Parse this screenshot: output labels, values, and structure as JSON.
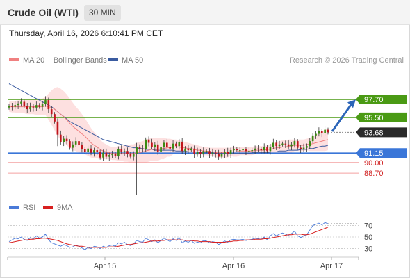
{
  "header": {
    "title": "Crude Oil (WTI)",
    "timeframe": "30 MIN",
    "datetime": "Thursday, April 16, 2026 6:10:41 PM CET"
  },
  "legend": {
    "ma20_label": "MA 20 + Bollinger Bands",
    "ma50_label": "MA 50",
    "copyright": "Research © 2026 Trading Central",
    "rsi_label": "RSI",
    "rsi_ma_label": "9MA"
  },
  "colors": {
    "ma20": "#f08080",
    "ma50": "#3a5ba0",
    "bollinger_fill": "#fde0e0",
    "resistance": "#4a9a14",
    "pivot": "#3a76d8",
    "support": "#f4a0a0",
    "candle_up": "#3a8a12",
    "candle_down": "#c0141c",
    "current_price_bg": "#2a2a2a",
    "rsi": "#4a7ad8",
    "rsi_ma": "#d82020"
  },
  "chart_data": [
    {
      "type": "candlestick",
      "ylim": [
        86.0,
        101.0
      ],
      "x_tick_labels": [
        "Apr 15",
        "Apr 16",
        "Apr 17"
      ],
      "levels": [
        {
          "value": 97.7,
          "label": "97.70",
          "kind": "resistance"
        },
        {
          "value": 95.5,
          "label": "95.50",
          "kind": "resistance"
        },
        {
          "value": 93.68,
          "label": "93.68",
          "kind": "current"
        },
        {
          "value": 91.15,
          "label": "91.15",
          "kind": "pivot"
        },
        {
          "value": 90.0,
          "label": "90.00",
          "kind": "support"
        },
        {
          "value": 88.7,
          "label": "88.70",
          "kind": "support"
        }
      ],
      "target_arrow": {
        "from": 93.8,
        "to": 97.5
      },
      "close": [
        96.9,
        96.8,
        97.0,
        97.2,
        97.4,
        96.9,
        96.5,
        96.8,
        96.7,
        97.0,
        96.8,
        97.1,
        97.6,
        96.5,
        95.9,
        95.0,
        93.4,
        92.5,
        92.9,
        92.6,
        91.8,
        92.2,
        92.6,
        92.1,
        91.6,
        91.3,
        91.7,
        91.2,
        91.5,
        91.3,
        90.6,
        91.2,
        90.7,
        90.9,
        91.0,
        90.8,
        91.6,
        91.3,
        91.4,
        91.0,
        90.7,
        91.0,
        91.9,
        91.7,
        91.6,
        92.8,
        92.4,
        91.9,
        92.2,
        91.3,
        91.9,
        92.4,
        91.9,
        91.7,
        92.3,
        92.0,
        92.5,
        91.4,
        91.7,
        91.5,
        91.7,
        91.0,
        91.3,
        91.0,
        91.4,
        91.4,
        91.0,
        91.2,
        91.1,
        90.7,
        91.0,
        91.3,
        91.0,
        91.5,
        91.6,
        91.5,
        91.5,
        91.6,
        91.4,
        91.4,
        91.5,
        91.7,
        91.6,
        91.5,
        91.9,
        91.4,
        91.9,
        92.4,
        92.0,
        92.2,
        92.3,
        92.2,
        92.0,
        92.2,
        92.6,
        91.8,
        91.6,
        91.8,
        92.0,
        92.6,
        93.3,
        93.5,
        93.8,
        93.6,
        94.0,
        93.68
      ],
      "ma20": [
        96.8,
        96.8,
        96.8,
        96.8,
        96.8,
        96.8,
        96.8,
        96.8,
        96.8,
        96.8,
        96.8,
        96.8,
        96.9,
        96.8,
        96.7,
        96.5,
        96.2,
        95.9,
        95.6,
        95.2,
        94.8,
        94.4,
        94.1,
        93.8,
        93.5,
        93.2,
        92.8,
        92.4,
        92.1,
        91.9,
        91.6,
        91.4,
        91.3,
        91.2,
        91.1,
        91.1,
        91.1,
        91.1,
        91.1,
        91.1,
        91.1,
        91.1,
        91.2,
        91.2,
        91.3,
        91.4,
        91.5,
        91.6,
        91.6,
        91.6,
        91.7,
        91.7,
        91.8,
        91.8,
        91.9,
        91.9,
        91.9,
        91.8,
        91.8,
        91.7,
        91.7,
        91.6,
        91.5,
        91.5,
        91.4,
        91.4,
        91.3,
        91.3,
        91.2,
        91.2,
        91.2,
        91.2,
        91.2,
        91.3,
        91.3,
        91.3,
        91.4,
        91.4,
        91.4,
        91.4,
        91.4,
        91.5,
        91.5,
        91.5,
        91.5,
        91.6,
        91.6,
        91.7,
        91.8,
        91.8,
        91.9,
        91.9,
        92.0,
        92.0,
        92.1,
        92.1,
        92.1,
        92.1,
        92.2,
        92.2,
        92.3,
        92.4,
        92.5,
        92.6,
        92.7,
        92.8
      ],
      "bb_upper": [
        97.4,
        97.5,
        97.5,
        97.6,
        97.6,
        97.6,
        97.7,
        97.7,
        97.7,
        97.8,
        97.8,
        97.8,
        98.0,
        98.4,
        98.8,
        99.1,
        99.2,
        99.0,
        98.7,
        98.3,
        97.8,
        97.3,
        96.8,
        96.4,
        95.9,
        95.4,
        94.8,
        94.2,
        93.7,
        93.3,
        92.8,
        92.4,
        92.2,
        92.0,
        91.9,
        91.9,
        92.0,
        92.0,
        92.1,
        92.1,
        92.2,
        92.2,
        92.4,
        92.5,
        92.6,
        92.8,
        92.9,
        93.0,
        93.0,
        93.0,
        93.0,
        93.0,
        92.9,
        92.9,
        92.8,
        92.8,
        92.7,
        92.6,
        92.5,
        92.4,
        92.3,
        92.2,
        92.1,
        92.0,
        91.9,
        91.9,
        91.8,
        91.8,
        91.8,
        91.8,
        91.8,
        91.8,
        91.8,
        91.8,
        91.9,
        91.9,
        91.9,
        91.9,
        91.9,
        91.9,
        91.9,
        92.0,
        92.0,
        92.0,
        92.0,
        92.1,
        92.2,
        92.3,
        92.5,
        92.6,
        92.7,
        92.7,
        92.8,
        92.8,
        92.8,
        92.8,
        92.8,
        92.8,
        92.9,
        93.0,
        93.2,
        93.4,
        93.6,
        93.8,
        94.0,
        94.1
      ],
      "bb_lower": [
        96.2,
        96.1,
        96.1,
        96.0,
        96.0,
        96.0,
        95.9,
        95.9,
        95.9,
        95.8,
        95.8,
        95.8,
        95.8,
        95.2,
        94.6,
        93.9,
        93.2,
        92.8,
        92.5,
        92.1,
        91.8,
        91.5,
        91.4,
        91.2,
        91.1,
        91.0,
        90.8,
        90.6,
        90.5,
        90.5,
        90.4,
        90.4,
        90.4,
        90.4,
        90.3,
        90.3,
        90.2,
        90.2,
        90.1,
        90.1,
        90.0,
        90.0,
        90.0,
        90.0,
        90.0,
        90.0,
        90.1,
        90.2,
        90.2,
        90.2,
        90.4,
        90.4,
        90.7,
        90.7,
        91.0,
        91.0,
        91.1,
        91.0,
        91.1,
        91.0,
        91.1,
        91.0,
        90.9,
        91.0,
        90.9,
        90.9,
        90.8,
        90.8,
        90.6,
        90.6,
        90.6,
        90.6,
        90.6,
        90.8,
        90.7,
        90.7,
        90.9,
        90.9,
        90.9,
        90.9,
        90.9,
        91.0,
        91.0,
        91.0,
        91.0,
        91.1,
        91.0,
        91.1,
        91.1,
        91.0,
        91.1,
        91.1,
        91.2,
        91.2,
        91.4,
        91.4,
        91.4,
        91.4,
        91.5,
        91.4,
        91.4,
        91.4,
        91.4,
        91.4,
        91.4,
        91.5
      ],
      "ma50": [
        99.6,
        99.4,
        99.2,
        99.0,
        98.8,
        98.6,
        98.4,
        98.2,
        98.0,
        97.8,
        97.6,
        97.4,
        97.2,
        97.0,
        96.8,
        96.5,
        96.2,
        95.9,
        95.6,
        95.3,
        95.0,
        94.8,
        94.6,
        94.4,
        94.2,
        94.0,
        93.8,
        93.6,
        93.4,
        93.2,
        93.0,
        92.8,
        92.7,
        92.6,
        92.5,
        92.4,
        92.3,
        92.2,
        92.1,
        92.0,
        91.9,
        91.8,
        91.8,
        91.7,
        91.7,
        91.6,
        91.6,
        91.6,
        91.5,
        91.5,
        91.5,
        91.5,
        91.5,
        91.5,
        91.5,
        91.4,
        91.4,
        91.4,
        91.4,
        91.3,
        91.3,
        91.3,
        91.3,
        91.2,
        91.2,
        91.2,
        91.2,
        91.2,
        91.1,
        91.1,
        91.1,
        91.1,
        91.1,
        91.1,
        91.1,
        91.1,
        91.1,
        91.1,
        91.1,
        91.1,
        91.2,
        91.2,
        91.2,
        91.2,
        91.2,
        91.2,
        91.3,
        91.3,
        91.3,
        91.4,
        91.4,
        91.4,
        91.5,
        91.5,
        91.5,
        91.5,
        91.6,
        91.6,
        91.6,
        91.7,
        91.7,
        91.8,
        91.9,
        92.0,
        92.0,
        92.1
      ]
    },
    {
      "type": "line",
      "name": "RSI",
      "ylim": [
        15,
        85
      ],
      "y_ticks": [
        70,
        50,
        30
      ],
      "rsi": [
        42,
        45,
        48,
        47,
        50,
        46,
        44,
        49,
        47,
        52,
        48,
        50,
        55,
        45,
        40,
        38,
        36,
        34,
        37,
        35,
        32,
        33,
        36,
        34,
        31,
        28,
        32,
        30,
        34,
        33,
        30,
        34,
        32,
        35,
        36,
        34,
        40,
        38,
        41,
        37,
        35,
        38,
        44,
        42,
        41,
        48,
        45,
        42,
        45,
        40,
        44,
        48,
        45,
        42,
        47,
        44,
        49,
        40,
        43,
        41,
        44,
        39,
        41,
        40,
        44,
        43,
        40,
        42,
        41,
        37,
        40,
        43,
        41,
        45,
        46,
        45,
        45,
        46,
        44,
        45,
        46,
        48,
        47,
        46,
        50,
        45,
        52,
        56,
        52,
        55,
        57,
        55,
        53,
        56,
        60,
        52,
        49,
        52,
        54,
        62,
        70,
        72,
        74,
        71,
        75,
        73
      ],
      "rsi_ma": [
        40,
        41,
        42,
        43,
        44,
        45,
        45,
        46,
        46,
        47,
        47,
        48,
        48,
        47,
        46,
        45,
        44,
        42,
        40,
        38,
        37,
        36,
        35,
        34,
        34,
        33,
        32,
        32,
        32,
        32,
        32,
        32,
        32,
        33,
        33,
        33,
        34,
        35,
        36,
        37,
        37,
        38,
        39,
        40,
        40,
        41,
        42,
        43,
        43,
        43,
        44,
        44,
        45,
        45,
        45,
        45,
        45,
        45,
        44,
        44,
        44,
        43,
        43,
        42,
        42,
        42,
        42,
        41,
        41,
        41,
        41,
        41,
        42,
        42,
        43,
        43,
        44,
        44,
        45,
        45,
        45,
        46,
        46,
        46,
        47,
        47,
        48,
        49,
        50,
        51,
        52,
        53,
        54,
        54,
        55,
        55,
        55,
        54,
        54,
        55,
        57,
        59,
        61,
        63,
        65,
        67
      ]
    }
  ]
}
